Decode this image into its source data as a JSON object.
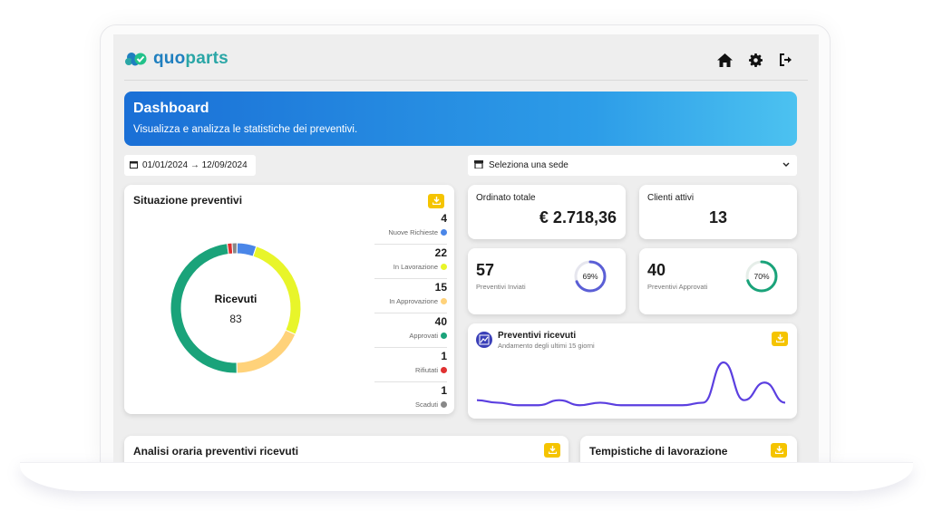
{
  "app": {
    "logo_text_q": "quo",
    "logo_text_rest": "parts",
    "brand_color": "#2aa6a6"
  },
  "toolbar": {
    "icons": [
      "home-icon",
      "gear-icon",
      "logout-icon"
    ]
  },
  "banner": {
    "title": "Dashboard",
    "subtitle": "Visualizza e analizza le statistiche dei preventivi."
  },
  "filters": {
    "date_range": "01/01/2024 → 12/09/2024",
    "sede_placeholder": "Seleziona una sede"
  },
  "situazione": {
    "title": "Situazione preventivi",
    "center_label": "Ricevuti",
    "center_value": "83",
    "legend": [
      {
        "value": "4",
        "label": "Nuove Richieste",
        "color": "#4a86e8"
      },
      {
        "value": "22",
        "label": "In Lavorazione",
        "color": "#e8f52a"
      },
      {
        "value": "15",
        "label": "In Approvazione",
        "color": "#ffd27a"
      },
      {
        "value": "40",
        "label": "Approvati",
        "color": "#1aa37a"
      },
      {
        "value": "1",
        "label": "Rifiutati",
        "color": "#e03131"
      },
      {
        "value": "1",
        "label": "Scaduti",
        "color": "#888888"
      }
    ]
  },
  "stats": {
    "ordinato_label": "Ordinato totale",
    "ordinato_value": "€ 2.718,36",
    "clienti_label": "Clienti attivi",
    "clienti_value": "13",
    "inviati_value": "57",
    "inviati_label": "Preventivi Inviati",
    "inviati_pct": "69%",
    "inviati_fraction": 0.69,
    "inviati_color": "#5b5fd6",
    "approvati_value": "40",
    "approvati_label": "Preventivi Approvati",
    "approvati_pct": "70%",
    "approvati_fraction": 0.7,
    "approvati_color": "#1aa37a"
  },
  "ricevuti": {
    "title": "Preventivi ricevuti",
    "subtitle": "Andamento degli ultimi 15 giorni",
    "line_color": "#5b3fe0",
    "series": [
      3,
      2,
      1,
      1,
      3,
      1,
      2,
      1,
      1,
      1,
      1,
      2,
      18,
      3,
      10,
      2
    ]
  },
  "sections": {
    "analisi_title": "Analisi oraria preventivi ricevuti",
    "tempi_title": "Tempistiche di lavorazione"
  }
}
